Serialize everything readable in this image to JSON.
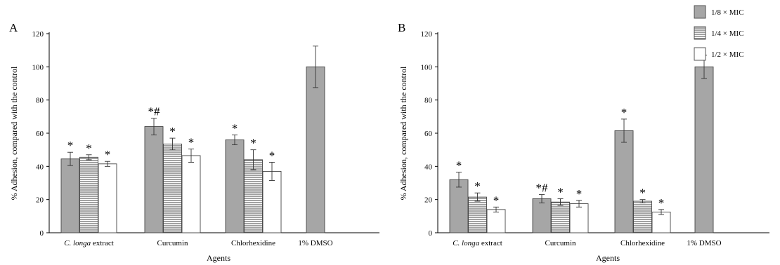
{
  "chart_data": [
    {
      "type": "bar",
      "panel_label": "A",
      "xlabel": "Agents",
      "ylabel": "% Adhesion,  compared with the control",
      "ylim": [
        0,
        120
      ],
      "yticks": [
        0,
        20,
        40,
        60,
        80,
        100,
        120
      ],
      "categories": [
        {
          "prefix": "",
          "italic": "C. longa",
          "suffix": " extract"
        },
        {
          "prefix": "Curcumin",
          "italic": "",
          "suffix": ""
        },
        {
          "prefix": "Chlorhexidine",
          "italic": "",
          "suffix": ""
        },
        {
          "prefix": "1% DMSO",
          "italic": "",
          "suffix": ""
        }
      ],
      "series": [
        {
          "values": [
            44.5,
            64.0,
            56.0,
            100.0
          ],
          "errors": [
            4.0,
            5.0,
            3.0,
            12.5
          ],
          "marks": [
            "*",
            "*#",
            "*",
            ""
          ]
        },
        {
          "values": [
            45.5,
            53.5,
            44.0,
            null
          ],
          "errors": [
            1.5,
            3.5,
            6.0,
            null
          ],
          "marks": [
            "*",
            "*",
            "*",
            ""
          ]
        },
        {
          "values": [
            41.5,
            46.5,
            37.0,
            null
          ],
          "errors": [
            1.5,
            4.0,
            5.5,
            null
          ],
          "marks": [
            "*",
            "*",
            "*",
            ""
          ]
        }
      ]
    },
    {
      "type": "bar",
      "panel_label": "B",
      "xlabel": "Agents",
      "ylabel": "% Adhesion,  compared with the control",
      "ylim": [
        0,
        120
      ],
      "yticks": [
        0,
        20,
        40,
        60,
        80,
        100,
        120
      ],
      "categories": [
        {
          "prefix": "",
          "italic": "C. longa",
          "suffix": " extract"
        },
        {
          "prefix": "Curcumin",
          "italic": "",
          "suffix": ""
        },
        {
          "prefix": "Chlorhexidine",
          "italic": "",
          "suffix": ""
        },
        {
          "prefix": "1% DMSO",
          "italic": "",
          "suffix": ""
        }
      ],
      "series": [
        {
          "values": [
            32.0,
            20.5,
            61.5,
            100.0
          ],
          "errors": [
            4.5,
            2.5,
            7.0,
            7.0
          ],
          "marks": [
            "*",
            "*#",
            "*",
            ""
          ]
        },
        {
          "values": [
            21.5,
            18.5,
            19.0,
            null
          ],
          "errors": [
            2.5,
            2.0,
            1.0,
            null
          ],
          "marks": [
            "*",
            "*",
            "*",
            ""
          ]
        },
        {
          "values": [
            14.0,
            17.5,
            12.5,
            null
          ],
          "errors": [
            1.5,
            2.0,
            1.5,
            null
          ],
          "marks": [
            "*",
            "*",
            "*",
            ""
          ]
        }
      ]
    }
  ],
  "legend": {
    "placement": "top-right",
    "items": [
      {
        "label": "1/8 × MIC",
        "pattern": "solid-gray"
      },
      {
        "label": "1/4 × MIC",
        "pattern": "horizontal-stripes"
      },
      {
        "label": "1/2 × MIC",
        "pattern": "white"
      }
    ]
  },
  "colors": {
    "solid_fill": "#a6a6a6",
    "stripe_fill": "#ffffff",
    "stripe_line": "#555555",
    "white_fill": "#ffffff",
    "outline": "#444444",
    "axis": "#000000"
  }
}
